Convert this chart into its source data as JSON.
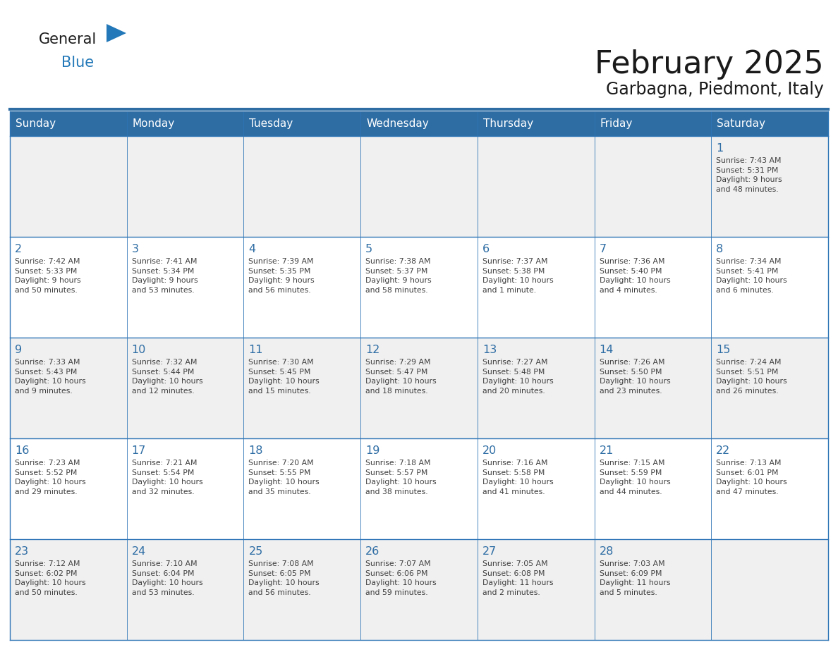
{
  "title": "February 2025",
  "subtitle": "Garbagna, Piedmont, Italy",
  "days_of_week": [
    "Sunday",
    "Monday",
    "Tuesday",
    "Wednesday",
    "Thursday",
    "Friday",
    "Saturday"
  ],
  "header_bg": "#2E6DA4",
  "header_text": "#FFFFFF",
  "cell_bg_odd": "#F0F0F0",
  "cell_bg_even": "#FFFFFF",
  "cell_border": "#2E75B6",
  "day_number_color": "#2E6DA4",
  "text_color": "#404040",
  "title_color": "#1a1a1a",
  "logo_general_color": "#1a1a1a",
  "logo_blue_color": "#2278B8",
  "calendar_data": [
    [
      null,
      null,
      null,
      null,
      null,
      null,
      {
        "day": 1,
        "sunrise": "7:43 AM",
        "sunset": "5:31 PM",
        "daylight": "9 hours\nand 48 minutes."
      }
    ],
    [
      {
        "day": 2,
        "sunrise": "7:42 AM",
        "sunset": "5:33 PM",
        "daylight": "9 hours\nand 50 minutes."
      },
      {
        "day": 3,
        "sunrise": "7:41 AM",
        "sunset": "5:34 PM",
        "daylight": "9 hours\nand 53 minutes."
      },
      {
        "day": 4,
        "sunrise": "7:39 AM",
        "sunset": "5:35 PM",
        "daylight": "9 hours\nand 56 minutes."
      },
      {
        "day": 5,
        "sunrise": "7:38 AM",
        "sunset": "5:37 PM",
        "daylight": "9 hours\nand 58 minutes."
      },
      {
        "day": 6,
        "sunrise": "7:37 AM",
        "sunset": "5:38 PM",
        "daylight": "10 hours\nand 1 minute."
      },
      {
        "day": 7,
        "sunrise": "7:36 AM",
        "sunset": "5:40 PM",
        "daylight": "10 hours\nand 4 minutes."
      },
      {
        "day": 8,
        "sunrise": "7:34 AM",
        "sunset": "5:41 PM",
        "daylight": "10 hours\nand 6 minutes."
      }
    ],
    [
      {
        "day": 9,
        "sunrise": "7:33 AM",
        "sunset": "5:43 PM",
        "daylight": "10 hours\nand 9 minutes."
      },
      {
        "day": 10,
        "sunrise": "7:32 AM",
        "sunset": "5:44 PM",
        "daylight": "10 hours\nand 12 minutes."
      },
      {
        "day": 11,
        "sunrise": "7:30 AM",
        "sunset": "5:45 PM",
        "daylight": "10 hours\nand 15 minutes."
      },
      {
        "day": 12,
        "sunrise": "7:29 AM",
        "sunset": "5:47 PM",
        "daylight": "10 hours\nand 18 minutes."
      },
      {
        "day": 13,
        "sunrise": "7:27 AM",
        "sunset": "5:48 PM",
        "daylight": "10 hours\nand 20 minutes."
      },
      {
        "day": 14,
        "sunrise": "7:26 AM",
        "sunset": "5:50 PM",
        "daylight": "10 hours\nand 23 minutes."
      },
      {
        "day": 15,
        "sunrise": "7:24 AM",
        "sunset": "5:51 PM",
        "daylight": "10 hours\nand 26 minutes."
      }
    ],
    [
      {
        "day": 16,
        "sunrise": "7:23 AM",
        "sunset": "5:52 PM",
        "daylight": "10 hours\nand 29 minutes."
      },
      {
        "day": 17,
        "sunrise": "7:21 AM",
        "sunset": "5:54 PM",
        "daylight": "10 hours\nand 32 minutes."
      },
      {
        "day": 18,
        "sunrise": "7:20 AM",
        "sunset": "5:55 PM",
        "daylight": "10 hours\nand 35 minutes."
      },
      {
        "day": 19,
        "sunrise": "7:18 AM",
        "sunset": "5:57 PM",
        "daylight": "10 hours\nand 38 minutes."
      },
      {
        "day": 20,
        "sunrise": "7:16 AM",
        "sunset": "5:58 PM",
        "daylight": "10 hours\nand 41 minutes."
      },
      {
        "day": 21,
        "sunrise": "7:15 AM",
        "sunset": "5:59 PM",
        "daylight": "10 hours\nand 44 minutes."
      },
      {
        "day": 22,
        "sunrise": "7:13 AM",
        "sunset": "6:01 PM",
        "daylight": "10 hours\nand 47 minutes."
      }
    ],
    [
      {
        "day": 23,
        "sunrise": "7:12 AM",
        "sunset": "6:02 PM",
        "daylight": "10 hours\nand 50 minutes."
      },
      {
        "day": 24,
        "sunrise": "7:10 AM",
        "sunset": "6:04 PM",
        "daylight": "10 hours\nand 53 minutes."
      },
      {
        "day": 25,
        "sunrise": "7:08 AM",
        "sunset": "6:05 PM",
        "daylight": "10 hours\nand 56 minutes."
      },
      {
        "day": 26,
        "sunrise": "7:07 AM",
        "sunset": "6:06 PM",
        "daylight": "10 hours\nand 59 minutes."
      },
      {
        "day": 27,
        "sunrise": "7:05 AM",
        "sunset": "6:08 PM",
        "daylight": "11 hours\nand 2 minutes."
      },
      {
        "day": 28,
        "sunrise": "7:03 AM",
        "sunset": "6:09 PM",
        "daylight": "11 hours\nand 5 minutes."
      },
      null
    ]
  ]
}
